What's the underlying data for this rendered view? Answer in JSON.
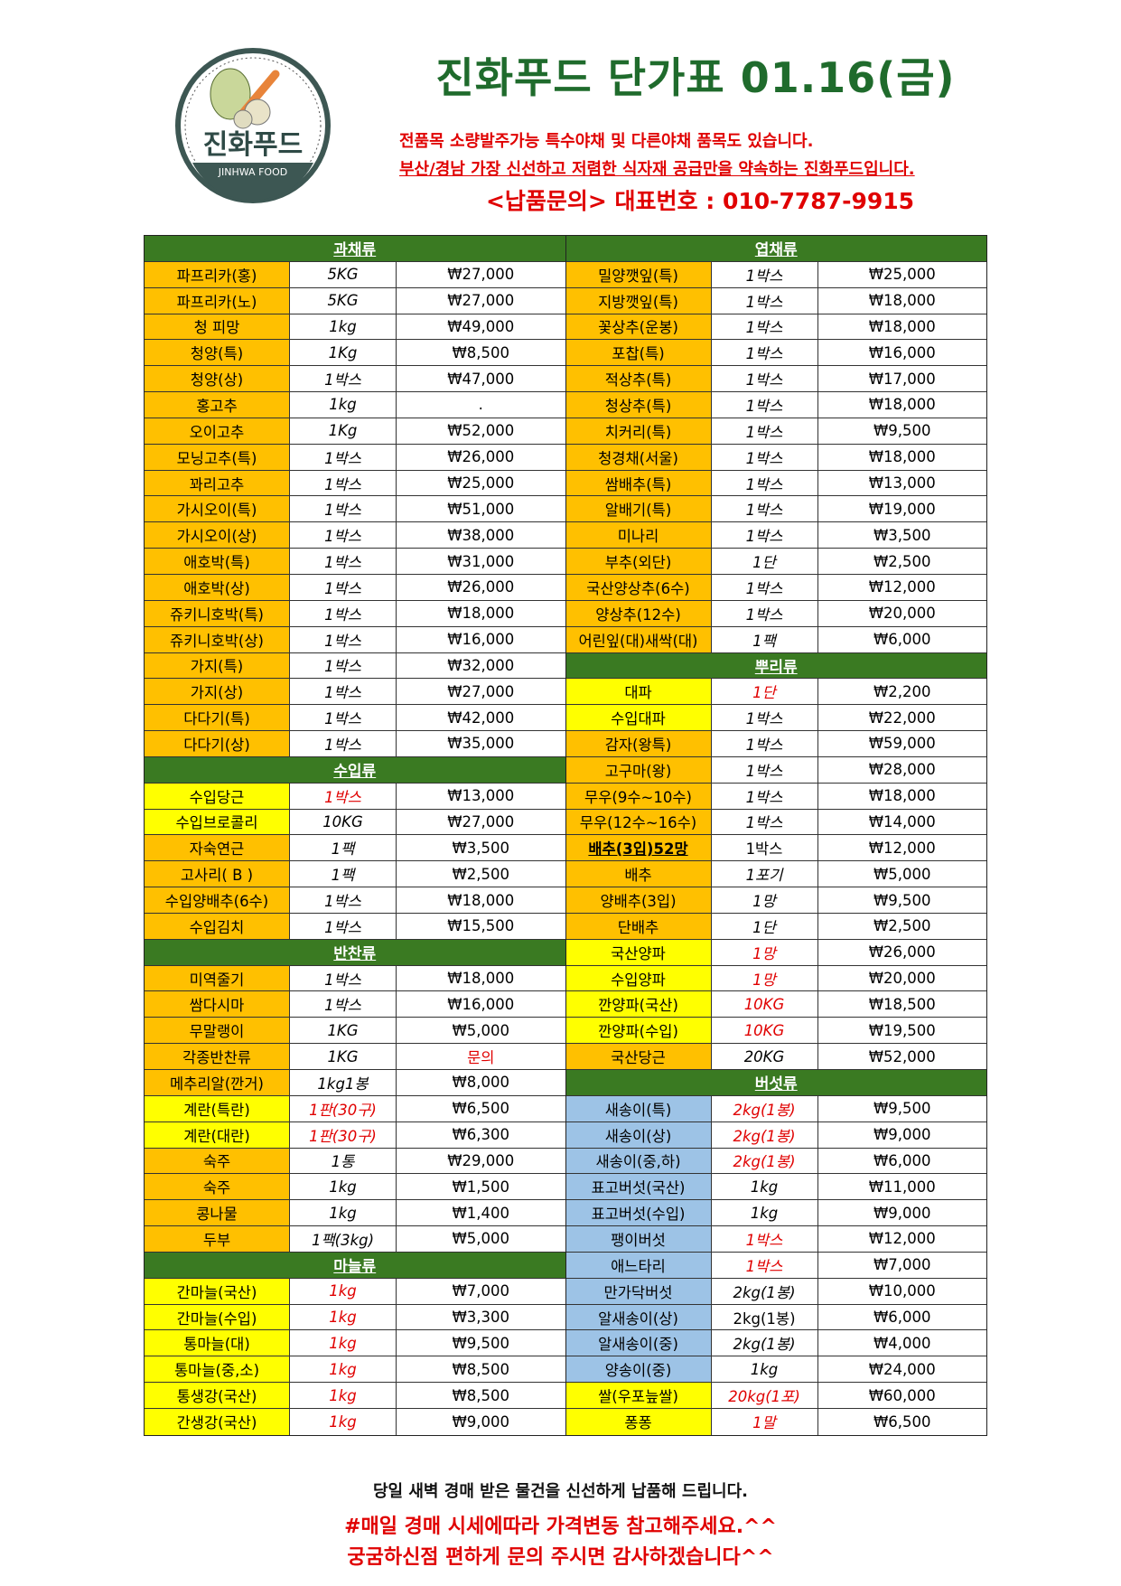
{
  "logo": {
    "text_ko": "진화푸드",
    "text_en": "JINHWA FOOD"
  },
  "header": {
    "title": "진화푸드 단가표 01.16(금)",
    "line1": "전품목 소량발주가능 특수야채 및 다른야채 품목도 있습니다.",
    "line2": "부산/경남 가장 신선하고 저렴한 식자재 공급만을 약속하는 진화푸드입니다.",
    "phone": "<납품문의> 대표번호 : 010-7787-9915"
  },
  "colors": {
    "orange": "#ffc000",
    "yellow": "#ffff00",
    "blue": "#9dc3e6",
    "green": "#3a7a22",
    "red": "#e00000"
  },
  "left": [
    {
      "header": "과채류"
    },
    {
      "n": "파프리카(홍)",
      "u": "5KG",
      "p": "₩27,000",
      "bg": "orange"
    },
    {
      "n": "파프리카(노)",
      "u": "5KG",
      "p": "₩27,000",
      "bg": "orange"
    },
    {
      "n": "청 피망",
      "u": "1kg",
      "p": "₩49,000",
      "bg": "orange"
    },
    {
      "n": "청양(특)",
      "u": "1Kg",
      "p": "₩8,500",
      "bg": "orange"
    },
    {
      "n": "청양(상)",
      "u": "1박스",
      "p": "₩47,000",
      "bg": "orange"
    },
    {
      "n": "홍고추",
      "u": "1kg",
      "p": ".",
      "bg": "orange"
    },
    {
      "n": "오이고추",
      "u": "1Kg",
      "p": "₩52,000",
      "bg": "orange"
    },
    {
      "n": "모닝고추(특)",
      "u": "1박스",
      "p": "₩26,000",
      "bg": "orange"
    },
    {
      "n": "꽈리고추",
      "u": "1박스",
      "p": "₩25,000",
      "bg": "orange"
    },
    {
      "n": "가시오이(특)",
      "u": "1박스",
      "p": "₩51,000",
      "bg": "orange"
    },
    {
      "n": "가시오이(상)",
      "u": "1박스",
      "p": "₩38,000",
      "bg": "orange"
    },
    {
      "n": "애호박(특)",
      "u": "1박스",
      "p": "₩31,000",
      "bg": "orange"
    },
    {
      "n": "애호박(상)",
      "u": "1박스",
      "p": "₩26,000",
      "bg": "orange"
    },
    {
      "n": "쥬키니호박(특)",
      "u": "1박스",
      "p": "₩18,000",
      "bg": "orange"
    },
    {
      "n": "쥬키니호박(상)",
      "u": "1박스",
      "p": "₩16,000",
      "bg": "orange"
    },
    {
      "n": "가지(특)",
      "u": "1박스",
      "p": "₩32,000",
      "bg": "orange"
    },
    {
      "n": "가지(상)",
      "u": "1박스",
      "p": "₩27,000",
      "bg": "orange"
    },
    {
      "n": "다다기(특)",
      "u": "1박스",
      "p": "₩42,000",
      "bg": "orange"
    },
    {
      "n": "다다기(상)",
      "u": "1박스",
      "p": "₩35,000",
      "bg": "orange"
    },
    {
      "header": "수입류"
    },
    {
      "n": "수입당근",
      "u": "1박스",
      "p": "₩13,000",
      "bg": "yellow",
      "unit_red": true
    },
    {
      "n": "수입브로콜리",
      "u": "10KG",
      "p": "₩27,000",
      "bg": "yellow"
    },
    {
      "n": "자숙연근",
      "u": "1팩",
      "p": "₩3,500",
      "bg": "orange"
    },
    {
      "n": "고사리( B )",
      "u": "1팩",
      "p": "₩2,500",
      "bg": "orange"
    },
    {
      "n": "수입양배추(6수)",
      "u": "1박스",
      "p": "₩18,000",
      "bg": "orange"
    },
    {
      "n": "수입김치",
      "u": "1박스",
      "p": "₩15,500",
      "bg": "orange"
    },
    {
      "header": "반찬류"
    },
    {
      "n": "미역줄기",
      "u": "1박스",
      "p": "₩18,000",
      "bg": "orange"
    },
    {
      "n": "쌈다시마",
      "u": "1박스",
      "p": "₩16,000",
      "bg": "orange"
    },
    {
      "n": "무말랭이",
      "u": "1KG",
      "p": "₩5,000",
      "bg": "orange"
    },
    {
      "n": "각종반찬류",
      "u": "1KG",
      "p": "문의",
      "bg": "orange",
      "price_red": true
    },
    {
      "n": "메추리알(깐거)",
      "u": "1kg1봉",
      "p": "₩8,000",
      "bg": "orange"
    },
    {
      "n": "계란(특란)",
      "u": "1판(30구)",
      "p": "₩6,500",
      "bg": "yellow",
      "unit_red": true
    },
    {
      "n": "계란(대란)",
      "u": "1판(30구)",
      "p": "₩6,300",
      "bg": "yellow",
      "unit_red": true
    },
    {
      "n": "숙주",
      "u": "1통",
      "p": "₩29,000",
      "bg": "orange"
    },
    {
      "n": "숙주",
      "u": "1kg",
      "p": "₩1,500",
      "bg": "orange"
    },
    {
      "n": "콩나물",
      "u": "1kg",
      "p": "₩1,400",
      "bg": "orange"
    },
    {
      "n": "두부",
      "u": "1팩(3kg)",
      "p": "₩5,000",
      "bg": "orange"
    },
    {
      "header": "마늘류"
    },
    {
      "n": "간마늘(국산)",
      "u": "1kg",
      "p": "₩7,000",
      "bg": "yellow",
      "unit_red": true
    },
    {
      "n": "간마늘(수입)",
      "u": "1kg",
      "p": "₩3,300",
      "bg": "yellow",
      "unit_red": true
    },
    {
      "n": "통마늘(대)",
      "u": "1kg",
      "p": "₩9,500",
      "bg": "yellow",
      "unit_red": true
    },
    {
      "n": "통마늘(중,소)",
      "u": "1kg",
      "p": "₩8,500",
      "bg": "yellow",
      "unit_red": true
    },
    {
      "n": "통생강(국산)",
      "u": "1kg",
      "p": "₩8,500",
      "bg": "yellow",
      "unit_red": true
    },
    {
      "n": "간생강(국산)",
      "u": "1kg",
      "p": "₩9,000",
      "bg": "yellow",
      "unit_red": true
    }
  ],
  "right": [
    {
      "header": "엽채류"
    },
    {
      "n": "밀양깻잎(특)",
      "u": "1박스",
      "p": "₩25,000",
      "bg": "orange"
    },
    {
      "n": "지방깻잎(특)",
      "u": "1박스",
      "p": "₩18,000",
      "bg": "orange"
    },
    {
      "n": "꽃상추(운봉)",
      "u": "1박스",
      "p": "₩18,000",
      "bg": "orange"
    },
    {
      "n": "포찹(특)",
      "u": "1박스",
      "p": "₩16,000",
      "bg": "orange"
    },
    {
      "n": "적상추(특)",
      "u": "1박스",
      "p": "₩17,000",
      "bg": "orange"
    },
    {
      "n": "청상추(특)",
      "u": "1박스",
      "p": "₩18,000",
      "bg": "orange"
    },
    {
      "n": "치커리(특)",
      "u": "1박스",
      "p": "₩9,500",
      "bg": "orange"
    },
    {
      "n": "청경채(서울)",
      "u": "1박스",
      "p": "₩18,000",
      "bg": "orange"
    },
    {
      "n": "쌈배추(특)",
      "u": "1박스",
      "p": "₩13,000",
      "bg": "orange"
    },
    {
      "n": "알배기(특)",
      "u": "1박스",
      "p": "₩19,000",
      "bg": "orange"
    },
    {
      "n": "미나리",
      "u": "1박스",
      "p": "₩3,500",
      "bg": "orange"
    },
    {
      "n": "부추(외단)",
      "u": "1단",
      "p": "₩2,500",
      "bg": "orange"
    },
    {
      "n": "국산양상추(6수)",
      "u": "1박스",
      "p": "₩12,000",
      "bg": "orange"
    },
    {
      "n": "양상추(12수)",
      "u": "1박스",
      "p": "₩20,000",
      "bg": "orange"
    },
    {
      "n": "어린잎(대)새싹(대)",
      "u": "1팩",
      "p": "₩6,000",
      "bg": "orange"
    },
    {
      "header": "뿌리류"
    },
    {
      "n": "대파",
      "u": "1단",
      "p": "₩2,200",
      "bg": "yellow",
      "unit_red": true
    },
    {
      "n": "수입대파",
      "u": "1박스",
      "p": "₩22,000",
      "bg": "yellow"
    },
    {
      "n": "감자(왕특)",
      "u": "1박스",
      "p": "₩59,000",
      "bg": "orange"
    },
    {
      "n": "고구마(왕)",
      "u": "1박스",
      "p": "₩28,000",
      "bg": "orange"
    },
    {
      "n": "무우(9수~10수)",
      "u": "1박스",
      "p": "₩18,000",
      "bg": "orange"
    },
    {
      "n": "무우(12수~16수)",
      "u": "1박스",
      "p": "₩14,000",
      "bg": "orange"
    },
    {
      "n": "배추(3입)52망",
      "u": "1박스",
      "p": "₩12,000",
      "bg": "orange",
      "name_bold": true,
      "unit_upright": true
    },
    {
      "n": "배추",
      "u": "1포기",
      "p": "₩5,000",
      "bg": "orange"
    },
    {
      "n": "양배추(3입)",
      "u": "1망",
      "p": "₩9,500",
      "bg": "orange"
    },
    {
      "n": "단배추",
      "u": "1단",
      "p": "₩2,500",
      "bg": "orange"
    },
    {
      "n": "국산양파",
      "u": "1망",
      "p": "₩26,000",
      "bg": "yellow",
      "unit_red": true
    },
    {
      "n": "수입양파",
      "u": "1망",
      "p": "₩20,000",
      "bg": "yellow",
      "unit_red": true
    },
    {
      "n": "깐양파(국산)",
      "u": "10KG",
      "p": "₩18,500",
      "bg": "yellow",
      "unit_red": true
    },
    {
      "n": "깐양파(수입)",
      "u": "10KG",
      "p": "₩19,500",
      "bg": "yellow",
      "unit_red": true
    },
    {
      "n": "국산당근",
      "u": "20KG",
      "p": "₩52,000",
      "bg": "orange"
    },
    {
      "header": "버섯류"
    },
    {
      "n": "새송이(특)",
      "u": "2kg(1봉)",
      "p": "₩9,500",
      "bg": "blue",
      "unit_red": true
    },
    {
      "n": "새송이(상)",
      "u": "2kg(1봉)",
      "p": "₩9,000",
      "bg": "blue",
      "unit_red": true
    },
    {
      "n": "새송이(중,하)",
      "u": "2kg(1봉)",
      "p": "₩6,000",
      "bg": "blue",
      "unit_red": true
    },
    {
      "n": "표고버섯(국산)",
      "u": "1kg",
      "p": "₩11,000",
      "bg": "blue"
    },
    {
      "n": "표고버섯(수입)",
      "u": "1kg",
      "p": "₩9,000",
      "bg": "blue"
    },
    {
      "n": "팽이버섯",
      "u": "1박스",
      "p": "₩12,000",
      "bg": "blue",
      "unit_red": true
    },
    {
      "n": "애느타리",
      "u": "1박스",
      "p": "₩7,000",
      "bg": "blue",
      "unit_red": true
    },
    {
      "n": "만가닥버섯",
      "u": "2kg(1봉)",
      "p": "₩10,000",
      "bg": "blue"
    },
    {
      "n": "알새송이(상)",
      "u": "2kg(1봉)",
      "p": "₩6,000",
      "bg": "blue",
      "unit_upright": true
    },
    {
      "n": "알새송이(중)",
      "u": "2kg(1봉)",
      "p": "₩4,000",
      "bg": "blue"
    },
    {
      "n": "양송이(중)",
      "u": "1kg",
      "p": "₩24,000",
      "bg": "blue"
    },
    {
      "n": "쌀(우포늪쌀)",
      "u": "20kg(1포)",
      "p": "₩60,000",
      "bg": "yellow",
      "unit_red": true
    },
    {
      "n": "퐁퐁",
      "u": "1말",
      "p": "₩6,500",
      "bg": "yellow",
      "unit_red": true
    }
  ],
  "footer": {
    "line1": "당일 새벽 경매 받은 물건을 신선하게 납품해 드립니다.",
    "line2": "#매일 경매 시세에따라 가격변동 참고해주세요.^^",
    "line3": "궁굼하신점 편하게 문의 주시면 감사하겠습니다^^"
  }
}
